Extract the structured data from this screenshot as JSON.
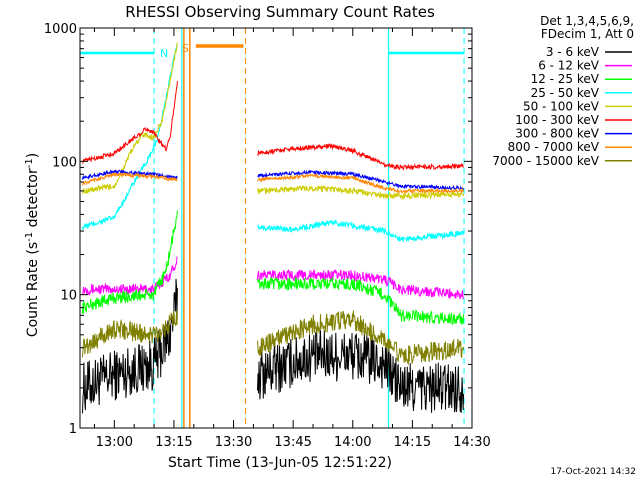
{
  "chart_data": {
    "type": "line",
    "title": "RHESSI Observing Summary Count Rates",
    "xlabel": "Start Time (13-Jun-05 12:51:22)",
    "ylabel_main": "Count Rate (s",
    "ylabel_sup1": "-1",
    "ylabel_mid": " detector",
    "ylabel_sup2": "-1",
    "ylabel_end": ")",
    "yscale": "log",
    "ylim": [
      1,
      1000
    ],
    "xlim": [
      "12:51:22",
      "14:30:00"
    ],
    "x_ticks": [
      "13:00",
      "13:15",
      "13:30",
      "13:45",
      "14:00",
      "14:15",
      "14:30"
    ],
    "y_ticks": [
      "1",
      "10",
      "100",
      "1000"
    ],
    "legend_header_1": "Det 1,3,4,5,6,9,",
    "legend_header_2": "FDecim 1, Att 0",
    "legend_position": "top-right",
    "timestamp": "17-Oct-2021 14:32",
    "markers": {
      "night_label": "N",
      "saa_label": "S",
      "night_intervals": [
        [
          "12:51",
          "13:10"
        ],
        [
          "14:09",
          "14:28"
        ]
      ],
      "saa_interval": [
        "13:18",
        "13:33"
      ],
      "attenuator_interval": [
        "13:17",
        "13:19"
      ]
    },
    "data_gaps": [
      [
        "13:17",
        "13:35"
      ]
    ],
    "series": [
      {
        "name": "3 - 6 keV",
        "color": "#000000",
        "points": [
          [
            "12:52",
            2
          ],
          [
            "13:00",
            2.5
          ],
          [
            "13:10",
            3
          ],
          [
            "13:14",
            5
          ],
          [
            "13:16",
            10
          ],
          [
            "13:36",
            2.5
          ],
          [
            "13:50",
            3.5
          ],
          [
            "14:00",
            3.5
          ],
          [
            "14:08",
            3
          ],
          [
            "14:12",
            2
          ],
          [
            "14:28",
            2
          ]
        ]
      },
      {
        "name": "6 - 12 keV",
        "color": "#ff00ff",
        "points": [
          [
            "12:52",
            11
          ],
          [
            "13:00",
            11
          ],
          [
            "13:10",
            11
          ],
          [
            "13:14",
            14
          ],
          [
            "13:16",
            19
          ],
          [
            "13:36",
            14
          ],
          [
            "13:50",
            14
          ],
          [
            "14:00",
            14
          ],
          [
            "14:08",
            13
          ],
          [
            "14:12",
            11
          ],
          [
            "14:28",
            10
          ]
        ]
      },
      {
        "name": "12 - 25 keV",
        "color": "#00ff00",
        "points": [
          [
            "12:52",
            8
          ],
          [
            "13:00",
            9.5
          ],
          [
            "13:10",
            10
          ],
          [
            "13:13",
            15
          ],
          [
            "13:15",
            30
          ],
          [
            "13:16",
            43
          ],
          [
            "13:36",
            12
          ],
          [
            "13:50",
            12
          ],
          [
            "14:00",
            12
          ],
          [
            "14:08",
            10
          ],
          [
            "14:12",
            7
          ],
          [
            "14:28",
            6.5
          ]
        ]
      },
      {
        "name": "25 - 50 keV",
        "color": "#00ffff",
        "points": [
          [
            "12:52",
            32
          ],
          [
            "13:00",
            38
          ],
          [
            "13:05",
            70
          ],
          [
            "13:09",
            110
          ],
          [
            "13:11",
            150
          ],
          [
            "13:13",
            300
          ],
          [
            "13:15",
            600
          ],
          [
            "13:16",
            750
          ],
          [
            "13:36",
            32
          ],
          [
            "13:45",
            31
          ],
          [
            "13:55",
            35
          ],
          [
            "14:00",
            33
          ],
          [
            "14:08",
            30
          ],
          [
            "14:12",
            26
          ],
          [
            "14:28",
            29
          ]
        ]
      },
      {
        "name": "50 - 100 keV",
        "color": "#cccc00",
        "points": [
          [
            "12:52",
            60
          ],
          [
            "13:00",
            65
          ],
          [
            "13:04",
            115
          ],
          [
            "13:07",
            160
          ],
          [
            "13:10",
            150
          ],
          [
            "13:12",
            200
          ],
          [
            "13:14",
            400
          ],
          [
            "13:16",
            800
          ],
          [
            "13:36",
            60
          ],
          [
            "13:50",
            63
          ],
          [
            "14:00",
            60
          ],
          [
            "14:08",
            55
          ],
          [
            "14:12",
            55
          ],
          [
            "14:28",
            57
          ]
        ]
      },
      {
        "name": "100 - 300 keV",
        "color": "#ff0000",
        "points": [
          [
            "12:52",
            100
          ],
          [
            "13:00",
            115
          ],
          [
            "13:05",
            150
          ],
          [
            "13:08",
            175
          ],
          [
            "13:10",
            165
          ],
          [
            "13:11",
            145
          ],
          [
            "13:13",
            125
          ],
          [
            "13:14",
            150
          ],
          [
            "13:15",
            250
          ],
          [
            "13:16",
            420
          ],
          [
            "13:36",
            115
          ],
          [
            "13:45",
            125
          ],
          [
            "13:55",
            130
          ],
          [
            "14:00",
            120
          ],
          [
            "14:08",
            95
          ],
          [
            "14:12",
            90
          ],
          [
            "14:28",
            92
          ]
        ]
      },
      {
        "name": "300 - 800 keV",
        "color": "#0000ff",
        "points": [
          [
            "12:52",
            75
          ],
          [
            "13:00",
            84
          ],
          [
            "13:10",
            80
          ],
          [
            "13:16",
            75
          ],
          [
            "13:36",
            78
          ],
          [
            "13:50",
            83
          ],
          [
            "14:00",
            80
          ],
          [
            "14:08",
            70
          ],
          [
            "14:12",
            65
          ],
          [
            "14:28",
            63
          ]
        ]
      },
      {
        "name": "800 - 7000 keV",
        "color": "#ff8800",
        "points": [
          [
            "12:52",
            68
          ],
          [
            "13:00",
            80
          ],
          [
            "13:10",
            77
          ],
          [
            "13:16",
            72
          ],
          [
            "13:36",
            73
          ],
          [
            "13:50",
            78
          ],
          [
            "14:00",
            75
          ],
          [
            "14:08",
            63
          ],
          [
            "14:12",
            60
          ],
          [
            "14:28",
            60
          ]
        ]
      },
      {
        "name": "7000 - 15000 keV",
        "color": "#808000",
        "points": [
          [
            "12:52",
            4
          ],
          [
            "13:00",
            5.5
          ],
          [
            "13:10",
            5
          ],
          [
            "13:14",
            6
          ],
          [
            "13:16",
            7
          ],
          [
            "13:36",
            4
          ],
          [
            "13:50",
            6
          ],
          [
            "14:00",
            6.5
          ],
          [
            "14:08",
            4.5
          ],
          [
            "14:12",
            3.5
          ],
          [
            "14:28",
            4
          ]
        ]
      }
    ]
  }
}
